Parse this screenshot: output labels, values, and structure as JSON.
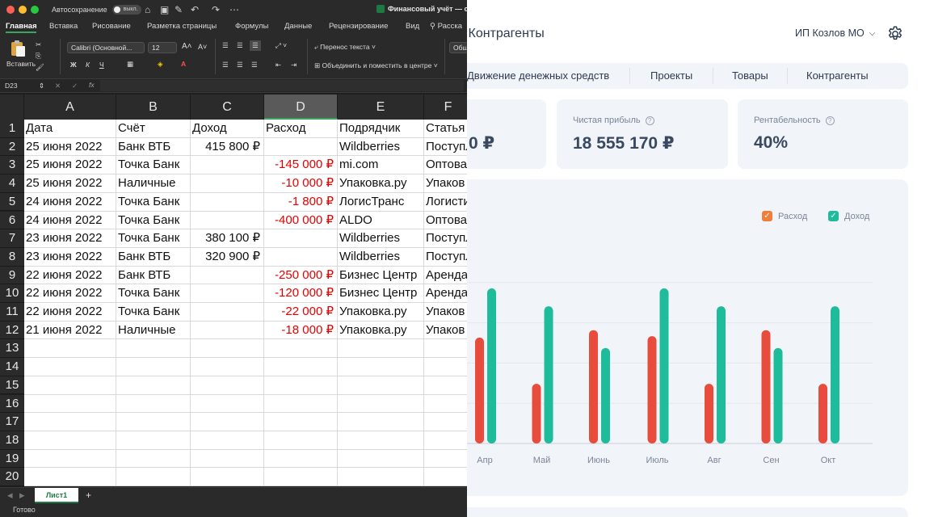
{
  "dashboard": {
    "title_partial": "ы",
    "title": "Контрагенты",
    "company": "ИП Козлов МО",
    "tabs": [
      "Движение денежных средств",
      "Проекты",
      "Товары",
      "Контрагенты"
    ],
    "cards": [
      {
        "label": "",
        "value": "0 ₽"
      },
      {
        "label": "Чистая прибыль",
        "value": "18 555 170 ₽"
      },
      {
        "label": "Рентабельность",
        "value": "40%"
      }
    ],
    "legend": {
      "expense": "Расход",
      "income": "Доход"
    },
    "colors": {
      "expense": "#e84c3d",
      "income": "#1fbc9c",
      "panel": "#f1f4f8",
      "text": "#2d3a50"
    }
  },
  "chart_data": {
    "type": "bar",
    "title": "",
    "categories": [
      "Апр",
      "Май",
      "Июнь",
      "Июль",
      "Авг",
      "Сен",
      "Окт"
    ],
    "series": [
      {
        "name": "Расход",
        "values": [
          71,
          40,
          76,
          72,
          40,
          76,
          40
        ]
      },
      {
        "name": "Доход",
        "values": [
          104,
          92,
          64,
          104,
          92,
          64,
          92
        ]
      }
    ],
    "ylim": [
      0,
      130
    ],
    "xlabel": "",
    "ylabel": "",
    "legend": "top-right",
    "grid": true
  },
  "excel": {
    "autosave_label": "Автосохранение",
    "autosave_state": "выкл.",
    "doc_title": "Финансовый учёт — с",
    "menu": [
      "Главная",
      "Вставка",
      "Рисование",
      "Разметка страницы",
      "Формулы",
      "Данные",
      "Рецензирование",
      "Вид",
      "Расска"
    ],
    "ribbon": {
      "paste": "Вставить",
      "font_name": "Calibri (Основной...",
      "font_size": "12",
      "wrap_text": "Перенос текста",
      "merge_center": "Объединить и поместить в центре",
      "format_partial": "Общ"
    },
    "name_box": "D23",
    "fx": "fx",
    "columns": [
      "A",
      "B",
      "C",
      "D",
      "E",
      "F"
    ],
    "row_numbers": [
      "1",
      "2",
      "3",
      "4",
      "5",
      "6",
      "7",
      "8",
      "9",
      "10",
      "11",
      "12",
      "13",
      "14",
      "15",
      "16",
      "17",
      "18",
      "19",
      "20"
    ],
    "rows": [
      [
        "Дата",
        "Счёт",
        "Доход",
        "Расход",
        "Подрядчик",
        "Статья"
      ],
      [
        "25 июня 2022",
        "Банк ВТБ",
        "415 800 ₽",
        "",
        "Wildberries",
        "Поступл"
      ],
      [
        "25 июня 2022",
        "Точка Банк",
        "",
        "-145 000 ₽",
        "mi.com",
        "Оптова"
      ],
      [
        "25 июня 2022",
        "Наличные",
        "",
        "-10 000 ₽",
        "Упаковка.ру",
        "Упаков"
      ],
      [
        "24 июня 2022",
        "Точка Банк",
        "",
        "-1 800 ₽",
        "ЛогисТранс",
        "Логисти"
      ],
      [
        "24 июня 2022",
        "Точка Банк",
        "",
        "-400 000 ₽",
        "ALDO",
        "Оптова"
      ],
      [
        "23 июня 2022",
        "Точка Банк",
        "380 100 ₽",
        "",
        "Wildberries",
        "Поступл"
      ],
      [
        "23 июня 2022",
        "Банк ВТБ",
        "320 900 ₽",
        "",
        "Wildberries",
        "Поступл"
      ],
      [
        "22 июня 2022",
        "Банк ВТБ",
        "",
        "-250 000 ₽",
        "Бизнес Центр",
        "Аренда"
      ],
      [
        "22 июня 2022",
        "Точка Банк",
        "",
        "-120 000 ₽",
        "Бизнес Центр",
        "Аренда"
      ],
      [
        "22 июня 2022",
        "Точка Банк",
        "",
        "-22 000 ₽",
        "Упаковка.ру",
        "Упаков"
      ],
      [
        "21 июня 2022",
        "Наличные",
        "",
        "-18 000 ₽",
        "Упаковка.ру",
        "Упаков"
      ]
    ],
    "sheet_tab": "Лист1",
    "add_sheet": "+",
    "status": "Готово"
  }
}
